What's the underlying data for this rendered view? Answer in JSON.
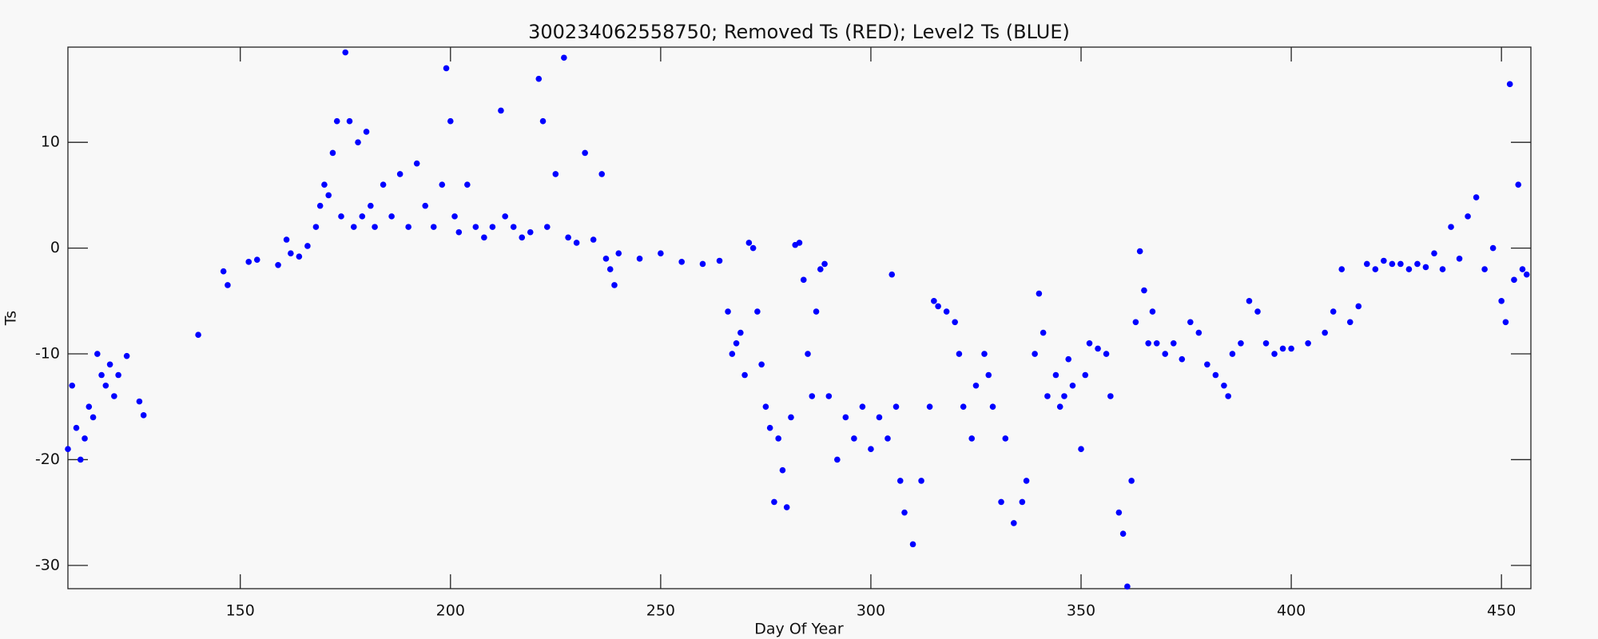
{
  "chart_data": {
    "type": "scatter",
    "title": "300234062558750; Removed Ts (RED); Level2 Ts (BLUE)",
    "x_label": "Day Of Year",
    "y_label": "Ts",
    "color": "#0000ff",
    "xlim": [
      109,
      457
    ],
    "ylim": [
      -32.2,
      19
    ],
    "xticks": [
      150,
      200,
      250,
      300,
      350,
      400,
      450
    ],
    "yticks": [
      -30,
      -20,
      -10,
      0,
      10
    ],
    "x": [
      109,
      110,
      111,
      112,
      113,
      114,
      115,
      116,
      117,
      118,
      119,
      120,
      121,
      123,
      126,
      127,
      140,
      146,
      147,
      152,
      154,
      159,
      161,
      162,
      164,
      166,
      168,
      169,
      170,
      171,
      172,
      173,
      174,
      175,
      176,
      177,
      178,
      179,
      180,
      181,
      182,
      184,
      186,
      188,
      190,
      192,
      194,
      196,
      198,
      199,
      200,
      201,
      202,
      204,
      206,
      208,
      210,
      212,
      213,
      215,
      217,
      219,
      221,
      222,
      223,
      225,
      227,
      228,
      230,
      232,
      234,
      236,
      237,
      238,
      239,
      240,
      245,
      250,
      255,
      260,
      264,
      266,
      267,
      268,
      269,
      270,
      271,
      272,
      273,
      274,
      275,
      276,
      277,
      278,
      279,
      280,
      281,
      282,
      283,
      284,
      285,
      286,
      287,
      288,
      289,
      290,
      292,
      294,
      296,
      298,
      300,
      302,
      304,
      305,
      306,
      307,
      308,
      310,
      312,
      314,
      315,
      316,
      318,
      320,
      321,
      322,
      324,
      325,
      327,
      328,
      329,
      331,
      332,
      334,
      336,
      337,
      339,
      340,
      341,
      342,
      344,
      345,
      346,
      347,
      348,
      350,
      351,
      352,
      354,
      356,
      357,
      359,
      360,
      361,
      362,
      363,
      364,
      365,
      366,
      367,
      368,
      370,
      372,
      374,
      376,
      378,
      380,
      382,
      384,
      385,
      386,
      388,
      390,
      392,
      394,
      396,
      398,
      400,
      404,
      408,
      410,
      412,
      414,
      416,
      418,
      420,
      422,
      424,
      426,
      428,
      430,
      432,
      434,
      436,
      438,
      440,
      442,
      444,
      446,
      448,
      450,
      451,
      452,
      453,
      454,
      455,
      456
    ],
    "values": [
      -19,
      -13,
      -17,
      -20,
      -18,
      -15,
      -16,
      -10,
      -12,
      -13,
      -11,
      -14,
      -12,
      -10.2,
      -14.5,
      -15.8,
      -8.2,
      -2.2,
      -3.5,
      -1.3,
      -1.1,
      -1.6,
      0.8,
      -0.5,
      -0.8,
      0.2,
      2,
      4,
      6,
      5,
      9,
      12,
      3,
      18.5,
      12,
      2,
      10,
      3,
      11,
      4,
      2,
      6,
      3,
      7,
      2,
      8,
      4,
      2,
      6,
      17,
      12,
      3,
      1.5,
      6,
      2,
      1,
      2,
      13,
      3,
      2,
      1,
      1.5,
      16,
      12,
      2,
      7,
      18,
      1,
      0.5,
      9,
      0.8,
      7,
      -1,
      -2,
      -3.5,
      -0.5,
      -1,
      -0.5,
      -1.3,
      -1.5,
      -1.2,
      -6,
      -10,
      -9,
      -8,
      -12,
      0.5,
      0,
      -6,
      -11,
      -15,
      -17,
      -24,
      -18,
      -21,
      -24.5,
      -16,
      0.3,
      0.5,
      -3,
      -10,
      -14,
      -6,
      -2,
      -1.5,
      -14,
      -20,
      -16,
      -18,
      -15,
      -19,
      -16,
      -18,
      -2.5,
      -15,
      -22,
      -25,
      -28,
      -22,
      -15,
      -5,
      -5.5,
      -6,
      -7,
      -10,
      -15,
      -18,
      -13,
      -10,
      -12,
      -15,
      -24,
      -18,
      -26,
      -24,
      -22,
      -10,
      -4.3,
      -8,
      -14,
      -12,
      -15,
      -14,
      -10.5,
      -13,
      -19,
      -12,
      -9,
      -9.5,
      -10,
      -14,
      -25,
      -27,
      -32,
      -22,
      -7,
      -0.3,
      -4,
      -9,
      -6,
      -9,
      -10,
      -9,
      -10.5,
      -7,
      -8,
      -11,
      -12,
      -13,
      -14,
      -10,
      -9,
      -5,
      -6,
      -9,
      -10,
      -9.5,
      -9.5,
      -9,
      -8,
      -6,
      -2,
      -7,
      -5.5,
      -1.5,
      -2,
      -1.2,
      -1.5,
      -1.5,
      -2,
      -1.5,
      -1.8,
      -0.5,
      -2,
      2,
      -1,
      3,
      4.8,
      -2,
      0,
      -5,
      -7,
      15.5,
      -3,
      6,
      -2,
      -2.5
    ]
  }
}
